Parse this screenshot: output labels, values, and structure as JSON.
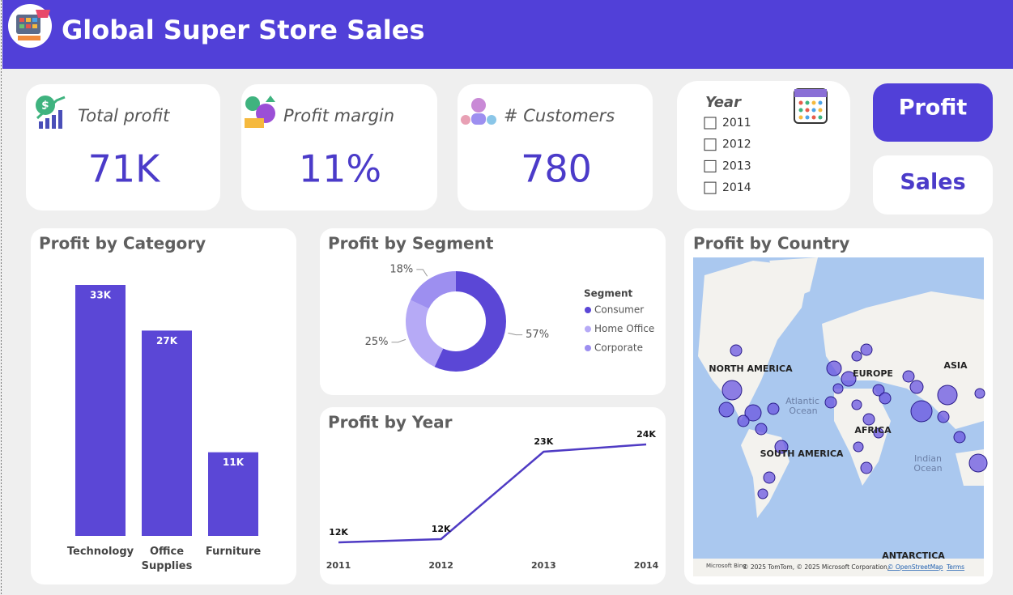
{
  "header": {
    "title": "Global Super Store Sales"
  },
  "kpis": [
    {
      "label": "Total profit",
      "value": "71K"
    },
    {
      "label": "Profit margin",
      "value": "11%"
    },
    {
      "label": "# Customers",
      "value": "780"
    }
  ],
  "filter": {
    "title": "Year",
    "options": [
      "2011",
      "2012",
      "2013",
      "2014"
    ]
  },
  "buttons": [
    "Profit",
    "Sales"
  ],
  "map": {
    "title": "Profit by Country",
    "labels": [
      "NORTH AMERICA",
      "EUROPE",
      "ASIA",
      "AFRICA",
      "SOUTH AMERICA",
      "ANTARCTICA",
      "Atlantic",
      "Ocean",
      "Indian",
      "Ocean"
    ],
    "brand": "Microsoft Bing",
    "attribution": "© 2025 TomTom, © 2025 Microsoft Corporation,",
    "osm": "© OpenStreetMap",
    "terms": "Terms"
  },
  "chart_data": [
    {
      "type": "bar",
      "title": "Profit by Category",
      "categories": [
        "Technology",
        "Office Supplies",
        "Furniture"
      ],
      "values": [
        33000,
        27000,
        11000
      ],
      "value_labels": [
        "33K",
        "27K",
        "11K"
      ],
      "color": "#5b47d6"
    },
    {
      "type": "pie",
      "title": "Profit by Segment",
      "legend_title": "Segment",
      "categories": [
        "Consumer",
        "Home Office",
        "Corporate"
      ],
      "values": [
        57,
        25,
        18
      ],
      "value_labels": [
        "57%",
        "25%",
        "18%"
      ],
      "colors": [
        "#5b47d6",
        "#b6aaf6",
        "#9d8ff0"
      ]
    },
    {
      "type": "line",
      "title": "Profit by Year",
      "x": [
        "2011",
        "2012",
        "2013",
        "2014"
      ],
      "values": [
        11800,
        12200,
        23000,
        23900
      ],
      "value_labels": [
        "12K",
        "12K",
        "23K",
        "24K"
      ],
      "color": "#4f3bc4"
    }
  ]
}
